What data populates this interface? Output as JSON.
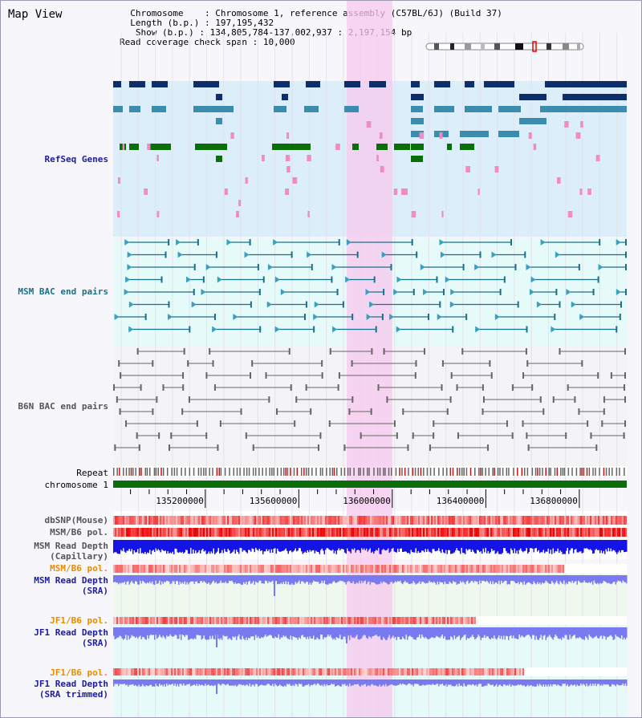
{
  "window": {
    "title": "Map View"
  },
  "header": {
    "chromosome_label": "Chromosome",
    "chromosome_value": "Chromosome 1, reference assembly (C57BL/6J) (Build 37)",
    "length_label": "Length (b.p.)",
    "length_value": "197,195,432",
    "show_label": "Show (b.p.)",
    "show_value": "134,805,784-137,002,937 : 2,197,154 bp",
    "coverage_label": "Read coverage check span",
    "coverage_value": "10,000"
  },
  "tracks": {
    "refseq": "RefSeq Genes",
    "msm_bac": "MSM BAC end pairs",
    "b6n_bac": "B6N BAC end pairs",
    "repeat": "Repeat",
    "chromosome": "chromosome 1",
    "dbsnp": "dbSNP(Mouse)",
    "msm_b6_pol": "MSM/B6 pol.",
    "msm_depth_cap_1": "MSM Read Depth",
    "msm_depth_cap_2": "(Capillary)",
    "msm_b6_pol_sra": "MSM/B6 pol.",
    "msm_depth_sra_1": "MSM Read Depth",
    "msm_depth_sra_2": "(SRA)",
    "jf1_b6_pol": "JF1/B6 pol.",
    "jf1_depth_sra_1": "JF1 Read Depth",
    "jf1_depth_sra_2": "(SRA)",
    "jf1_b6_pol_trim": "JF1/B6 pol.",
    "jf1_depth_trim_1": "JF1 Read Depth",
    "jf1_depth_trim_2": "(SRA trimmed)"
  },
  "axis": {
    "start": 134805784,
    "end": 137002937,
    "ticks": [
      "135200000",
      "135600000",
      "136000000",
      "136400000",
      "136800000"
    ]
  },
  "highlight": {
    "start": 135805000,
    "end": 136000000
  },
  "colors": {
    "refseq_bg": "#dceefa",
    "msm_bg": "#e6fafa",
    "b6n_bg": "#f4f4f6",
    "highlight": "#f7c8ee",
    "gene_dark": "#0d2d6b",
    "gene_mid": "#3c8cb0",
    "gene_green": "#0a6e0a",
    "gene_pink": "#f08cc0",
    "msm_pair": "#1a6f8a",
    "b6n_pair": "#666666",
    "chrom_bar": "#0b6e0b",
    "depth_blue": "#1414e6",
    "depth_light": "#7a7af0",
    "label_blue": "#1c1c9c",
    "label_teal": "#1a6f8a",
    "label_orange": "#e88c00",
    "label_gray": "#555555"
  }
}
